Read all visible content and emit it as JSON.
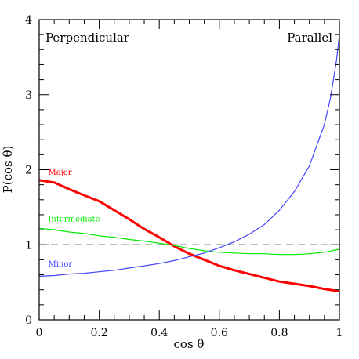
{
  "chart_data": {
    "type": "line",
    "xlabel": "cos θ",
    "ylabel": "P(cos θ)",
    "xlim": [
      0,
      1
    ],
    "ylim": [
      0,
      4
    ],
    "x_ticks": [
      "0",
      "0.2",
      "0.4",
      "0.6",
      "0.8",
      "1"
    ],
    "y_ticks": [
      "0",
      "1",
      "2",
      "3",
      "4"
    ],
    "annotations": {
      "left": "Perpendicular",
      "right": "Parallel"
    },
    "reference_line": {
      "y": 1,
      "style": "dashed",
      "color": "#808080"
    },
    "grid": false,
    "series": [
      {
        "name": "Major",
        "color": "#ff0000",
        "label_pos": {
          "x": 0.03,
          "y": 1.93
        },
        "x": [
          0,
          0.05,
          0.1,
          0.15,
          0.2,
          0.25,
          0.3,
          0.35,
          0.4,
          0.45,
          0.5,
          0.55,
          0.6,
          0.65,
          0.7,
          0.75,
          0.8,
          0.85,
          0.9,
          0.95,
          1.0
        ],
        "y": [
          1.86,
          1.83,
          1.74,
          1.66,
          1.58,
          1.46,
          1.34,
          1.21,
          1.1,
          0.98,
          0.88,
          0.8,
          0.72,
          0.66,
          0.61,
          0.56,
          0.51,
          0.48,
          0.45,
          0.41,
          0.38
        ]
      },
      {
        "name": "Intermediate",
        "color": "#00ee00",
        "label_pos": {
          "x": 0.03,
          "y": 1.31
        },
        "x": [
          0,
          0.05,
          0.1,
          0.15,
          0.2,
          0.25,
          0.3,
          0.35,
          0.4,
          0.45,
          0.5,
          0.55,
          0.6,
          0.65,
          0.7,
          0.75,
          0.8,
          0.85,
          0.9,
          0.95,
          1.0
        ],
        "y": [
          1.22,
          1.2,
          1.17,
          1.15,
          1.12,
          1.1,
          1.07,
          1.05,
          1.02,
          0.99,
          0.95,
          0.92,
          0.9,
          0.89,
          0.88,
          0.88,
          0.87,
          0.87,
          0.88,
          0.9,
          0.94
        ]
      },
      {
        "name": "Minor",
        "color": "#4444ff",
        "label_pos": {
          "x": 0.03,
          "y": 0.71
        },
        "x": [
          0,
          0.05,
          0.1,
          0.15,
          0.2,
          0.25,
          0.3,
          0.35,
          0.4,
          0.45,
          0.5,
          0.55,
          0.6,
          0.65,
          0.7,
          0.75,
          0.8,
          0.85,
          0.9,
          0.95,
          0.97,
          0.99,
          1.0
        ],
        "y": [
          0.58,
          0.59,
          0.61,
          0.62,
          0.64,
          0.66,
          0.69,
          0.72,
          0.75,
          0.79,
          0.84,
          0.89,
          0.96,
          1.04,
          1.14,
          1.27,
          1.46,
          1.71,
          2.05,
          2.6,
          2.95,
          3.45,
          3.8
        ]
      }
    ]
  }
}
